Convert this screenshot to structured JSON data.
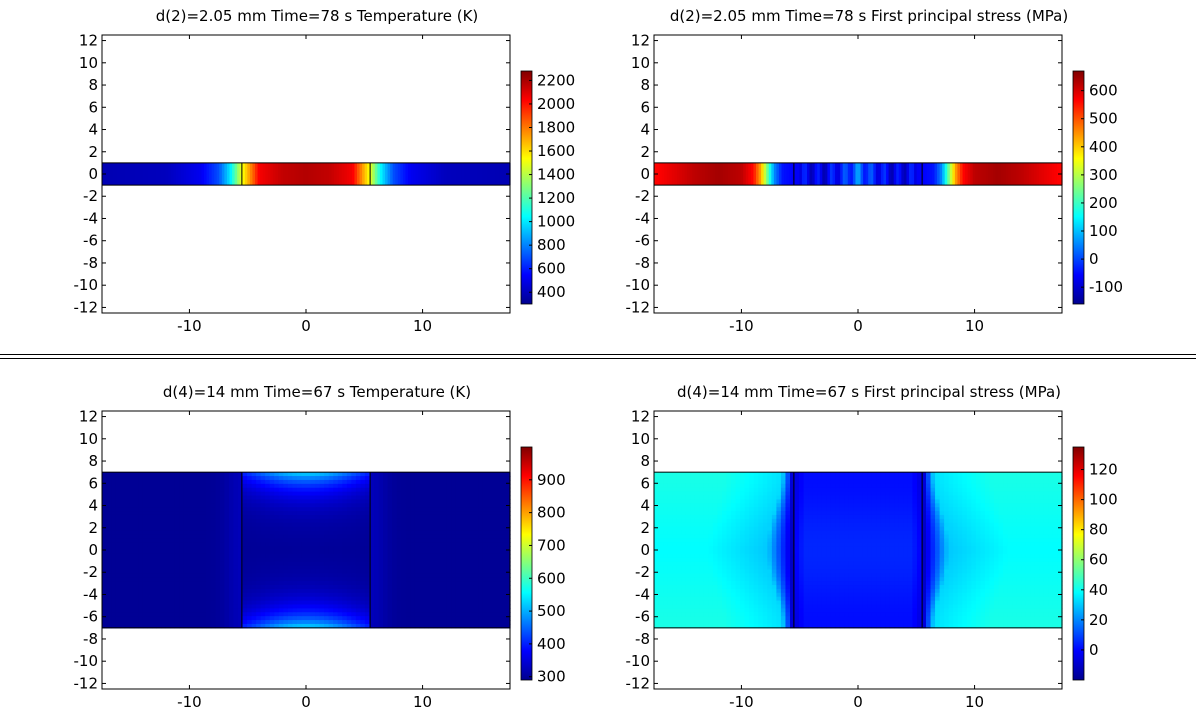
{
  "chart_data": [
    {
      "type": "heatmap",
      "title": "d(2)=2.05 mm Time=78 s   Temperature (K)",
      "xlim": [
        -17.5,
        17.5
      ],
      "ylim": [
        -12.5,
        12.5
      ],
      "xticks": [
        -10,
        0,
        10
      ],
      "yticks": [
        12,
        10,
        8,
        6,
        4,
        2,
        0,
        -2,
        -4,
        -6,
        -8,
        -10,
        -12
      ],
      "colorbar": {
        "min": 300,
        "max": 2280,
        "ticks": [
          2200,
          2000,
          1800,
          1600,
          1400,
          1200,
          1000,
          800,
          600,
          400
        ]
      },
      "domain": {
        "x": [
          -17.5,
          17.5
        ],
        "y": [
          -1,
          1
        ]
      },
      "boundaries_x": [
        -5.5,
        5.5
      ],
      "field": "temperature",
      "profile_x": [
        -17.5,
        -12,
        -9,
        -7.5,
        -6.5,
        -5.5,
        -4.8,
        -4,
        -2,
        0,
        2,
        4,
        4.8,
        5.5,
        6.5,
        7.5,
        9,
        12,
        17.5
      ],
      "profile_v": [
        400,
        420,
        520,
        700,
        1000,
        1500,
        1750,
        2050,
        2150,
        2180,
        2150,
        2050,
        1750,
        1500,
        1000,
        700,
        520,
        420,
        400
      ]
    },
    {
      "type": "heatmap",
      "title": "d(2)=2.05 mm Time=78 s   First principal stress (MPa)",
      "xlim": [
        -17.5,
        17.5
      ],
      "ylim": [
        -12.5,
        12.5
      ],
      "xticks": [
        -10,
        0,
        10
      ],
      "yticks": [
        12,
        10,
        8,
        6,
        4,
        2,
        0,
        -2,
        -4,
        -6,
        -8,
        -10,
        -12
      ],
      "colorbar": {
        "min": -160,
        "max": 670,
        "ticks": [
          600,
          500,
          400,
          300,
          200,
          100,
          0,
          -100
        ]
      },
      "domain": {
        "x": [
          -17.5,
          17.5
        ],
        "y": [
          -1,
          1
        ]
      },
      "boundaries_x": [
        -5.5,
        5.5
      ],
      "field": "stress",
      "profile_x": [
        -17.5,
        -14,
        -12,
        -10,
        -9,
        -8.3,
        -7.8,
        -7.2,
        -6.5,
        -5.5,
        -3,
        -1,
        0,
        1,
        3,
        5.5,
        6.5,
        7.2,
        7.8,
        8.3,
        9,
        10,
        12,
        14,
        17.5
      ],
      "profile_v": [
        560,
        620,
        640,
        620,
        560,
        420,
        250,
        60,
        -40,
        -60,
        -80,
        -20,
        40,
        -20,
        -80,
        -60,
        -40,
        60,
        250,
        420,
        560,
        620,
        640,
        620,
        560
      ]
    },
    {
      "type": "heatmap",
      "title": "d(4)=14 mm Time=67 s   Temperature (K)",
      "xlim": [
        -17.5,
        17.5
      ],
      "ylim": [
        -12.5,
        12.5
      ],
      "xticks": [
        -10,
        0,
        10
      ],
      "yticks": [
        12,
        10,
        8,
        6,
        4,
        2,
        0,
        -2,
        -4,
        -6,
        -8,
        -10,
        -12
      ],
      "colorbar": {
        "min": 290,
        "max": 1000,
        "ticks": [
          900,
          800,
          700,
          600,
          500,
          400,
          300
        ]
      },
      "domain": {
        "x": [
          -17.5,
          17.5
        ],
        "y": [
          -7,
          7
        ]
      },
      "boundaries_x": [
        -5.5,
        5.5
      ],
      "field": "temperature2"
    },
    {
      "type": "heatmap",
      "title": "d(4)=14 mm Time=67 s   First principal stress (MPa)",
      "xlim": [
        -17.5,
        17.5
      ],
      "ylim": [
        -12.5,
        12.5
      ],
      "xticks": [
        -10,
        0,
        10
      ],
      "yticks": [
        12,
        10,
        8,
        6,
        4,
        2,
        0,
        -2,
        -4,
        -6,
        -8,
        -10,
        -12
      ],
      "colorbar": {
        "min": -20,
        "max": 135,
        "ticks": [
          120,
          100,
          80,
          60,
          40,
          20,
          0
        ]
      },
      "domain": {
        "x": [
          -17.5,
          17.5
        ],
        "y": [
          -7,
          7
        ]
      },
      "boundaries_x": [
        -5.5,
        5.5
      ],
      "field": "stress2"
    }
  ]
}
